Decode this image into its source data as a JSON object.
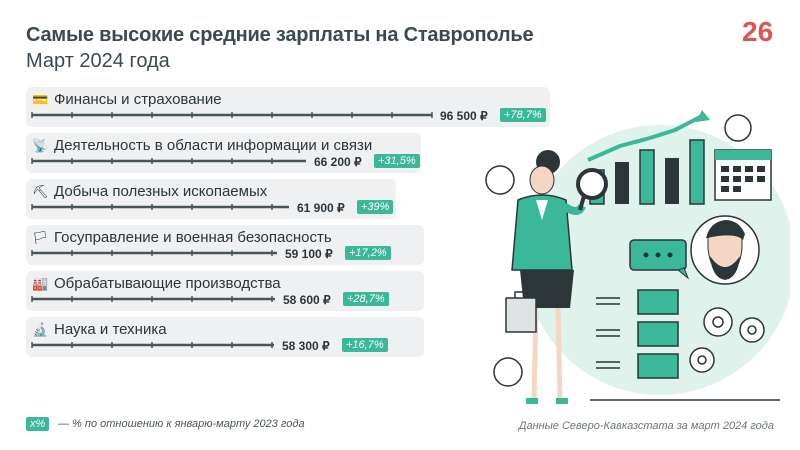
{
  "header": {
    "title": "Самые высокие средние зарплаты на Ставрополье",
    "subtitle": "Март 2024 года",
    "logo_text": "26"
  },
  "colors": {
    "accent": "#3bb89a",
    "accent_light": "#dff2ec",
    "bar": "#4a5559",
    "row_bg": "#eef0f1",
    "logo": "#e05553"
  },
  "chart_data": {
    "type": "bar",
    "orientation": "horizontal",
    "title": "Самые высокие средние зарплаты на Ставрополье",
    "subtitle": "Март 2024 года",
    "unit": "₽",
    "categories": [
      "Финансы и страхование",
      "Деятельность в области информации и связи",
      "Добыча полезных ископаемых",
      "Госуправление и военная безопасность",
      "Обрабатывающие производства",
      "Наука и техника"
    ],
    "values": [
      96500,
      66200,
      61900,
      59100,
      58600,
      58300
    ],
    "value_labels": [
      "96 500 ₽",
      "66 200 ₽",
      "61 900 ₽",
      "59 100 ₽",
      "58 600 ₽",
      "58 300 ₽"
    ],
    "change_labels": [
      "+78,7%",
      "+31,5%",
      "+39%",
      "+17,2%",
      "+28,7%",
      "+16,7%"
    ],
    "icons": [
      "credit-card-icon",
      "satellite-dish-icon",
      "pickaxe-icon",
      "russia-flag-icon",
      "factory-icon",
      "microscope-icon"
    ],
    "grid": false,
    "legend": "bottom-left"
  },
  "footer": {
    "legend_badge": "х%",
    "legend_text": "— % по отношению к январю-марту 2023 года",
    "source": "Данные Северо-Кавказстата за март 2024 года"
  }
}
